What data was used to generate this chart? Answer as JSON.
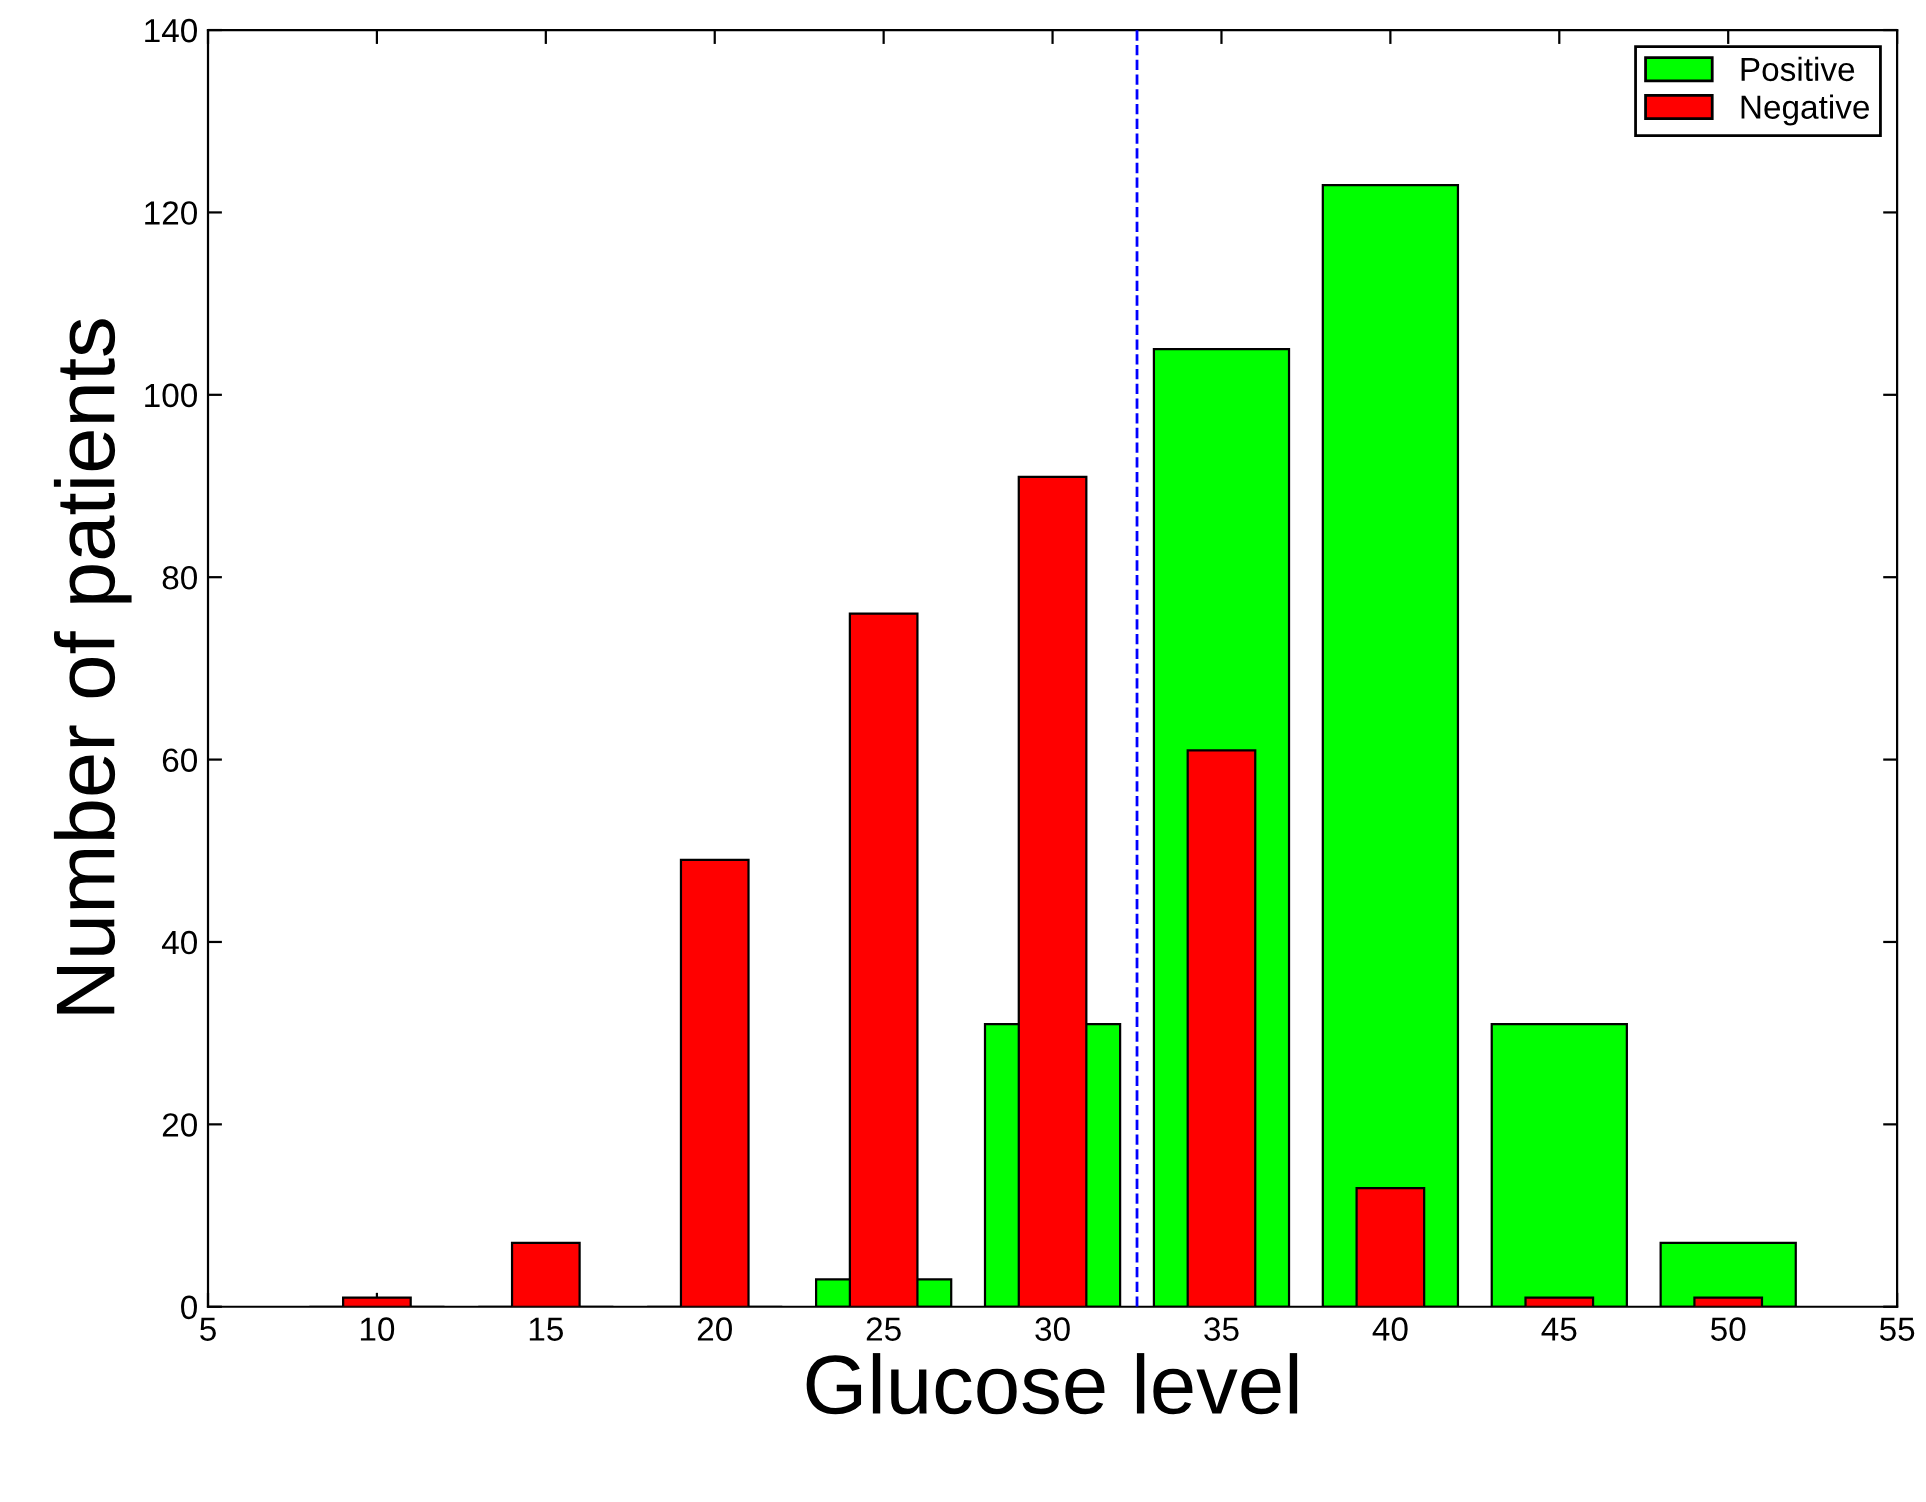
{
  "chart_data": {
    "type": "bar",
    "xlabel": "Glucose level",
    "ylabel": "Number of patients",
    "x": [
      10,
      15,
      20,
      25,
      30,
      35,
      40,
      45,
      50
    ],
    "series": [
      {
        "name": "Positive",
        "color": "#00ff00",
        "values": [
          0,
          0,
          0,
          3,
          31,
          105,
          123,
          31,
          7
        ]
      },
      {
        "name": "Negative",
        "color": "#ff0000",
        "values": [
          1,
          7,
          49,
          76,
          91,
          61,
          13,
          1,
          1
        ]
      }
    ],
    "xlim": [
      5,
      55
    ],
    "xticks": [
      5,
      10,
      15,
      20,
      25,
      30,
      35,
      40,
      45,
      50,
      55
    ],
    "ylim": [
      0,
      140
    ],
    "yticks": [
      0,
      20,
      40,
      60,
      80,
      100,
      120,
      140
    ],
    "ref_lines": [
      {
        "axis": "x",
        "value": 32.5,
        "color": "#0000ff",
        "line_style": "dashed"
      }
    ],
    "grid": false,
    "legend": "top right"
  }
}
